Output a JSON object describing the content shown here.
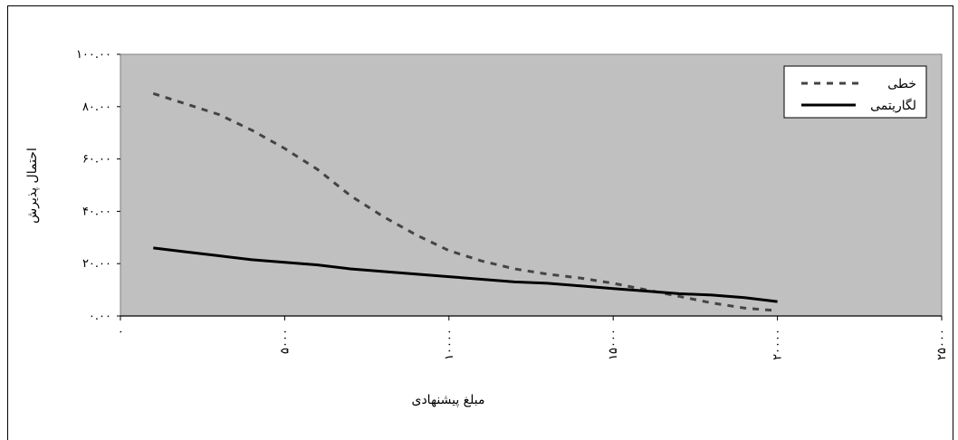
{
  "chart_data": {
    "type": "line",
    "xlabel": "مبلغ پیشنهادی",
    "ylabel": "احتمال پذیرش",
    "xlim": [
      0,
      25000
    ],
    "ylim": [
      0,
      100
    ],
    "x_ticks": [
      0,
      5000,
      10000,
      15000,
      20000,
      25000
    ],
    "x_tick_labels": [
      "۰",
      "۵۰۰۰",
      "۱۰۰۰۰",
      "۱۵۰۰۰",
      "۲۰۰۰۰",
      "۲۵۰۰۰"
    ],
    "y_ticks": [
      0,
      20,
      40,
      60,
      80,
      100
    ],
    "y_tick_labels": [
      "۰.۰۰",
      "۲۰.۰۰",
      "۴۰.۰۰",
      "۶۰.۰۰",
      "۸۰.۰۰",
      "۱۰۰.۰۰"
    ],
    "legend_position": "top-right",
    "colors": {
      "plot_bg": "#c0c0c0",
      "series": "#444444",
      "logarithmic": "#000000"
    },
    "series": [
      {
        "name": "خطی",
        "style": "dashed",
        "x": [
          1000,
          2000,
          3000,
          4000,
          5000,
          6000,
          7000,
          8000,
          9000,
          10000,
          11000,
          12000,
          13000,
          14000,
          15000,
          16000,
          17000,
          18000,
          19000,
          20000
        ],
        "values": [
          85,
          81,
          77,
          71,
          64,
          56,
          46,
          38,
          31,
          25,
          21,
          18,
          16,
          14.5,
          12.5,
          10,
          7.5,
          5,
          3,
          2
        ]
      },
      {
        "name": "لگاریتمی",
        "style": "solid",
        "x": [
          1000,
          2000,
          3000,
          4000,
          5000,
          6000,
          7000,
          8000,
          9000,
          10000,
          11000,
          12000,
          13000,
          14000,
          15000,
          16000,
          17000,
          18000,
          19000,
          20000
        ],
        "values": [
          26,
          24.5,
          23,
          21.5,
          20.5,
          19.5,
          18,
          17,
          16,
          15,
          14,
          13,
          12.5,
          11.5,
          10.5,
          9.5,
          8.5,
          8,
          7,
          5.5
        ]
      }
    ]
  }
}
